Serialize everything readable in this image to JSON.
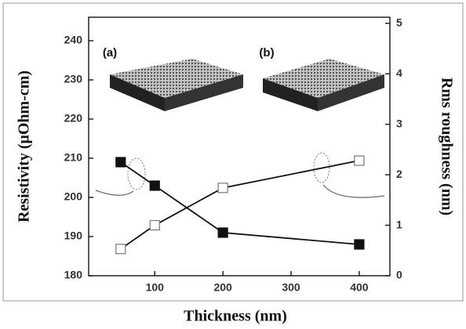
{
  "chart_data": {
    "type": "line",
    "x_label": "Thickness (nm)",
    "y_label": "Resistivity (μOhm-cm)",
    "y2_label": "Rms roughness (nm)",
    "x": [
      50,
      100,
      200,
      400
    ],
    "series": [
      {
        "color": "#111111",
        "marker": "filled-square",
        "values": [
          209,
          203,
          191,
          188
        ]
      },
      {
        "color": "#111111",
        "marker": "open-square",
        "axis": "y2",
        "values": [
          0.53,
          1.0,
          1.74,
          2.28
        ]
      }
    ],
    "xlim": [
      3,
      445
    ],
    "xticks": [
      100,
      200,
      300,
      400
    ],
    "ylim": [
      180,
      246
    ],
    "yticks": [
      180,
      190,
      200,
      210,
      220,
      230,
      240
    ],
    "y2lim": [
      0,
      5.12
    ],
    "y2ticks": [
      0,
      1,
      2,
      3,
      4,
      5
    ],
    "annotations": [
      "(a)",
      "(b)"
    ]
  }
}
